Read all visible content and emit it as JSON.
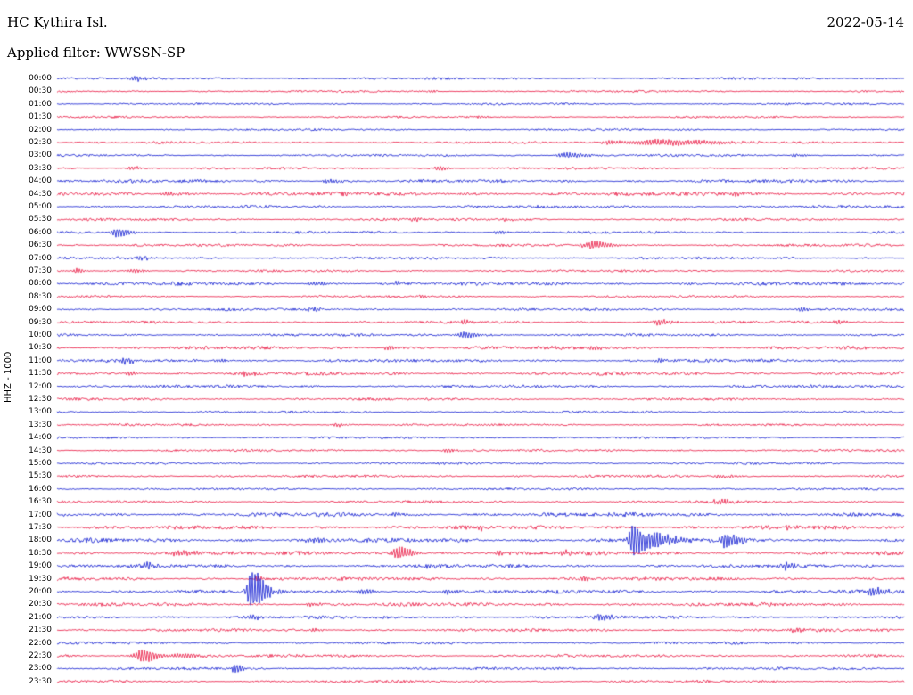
{
  "chart_data": {
    "type": "line",
    "subtype": "seismogram-helicorder",
    "title": "HC Kythira Isl.",
    "date": "2022-05-14",
    "filter": "Applied filter: WWSSN-SP",
    "ylabel": "HHZ - 1000",
    "trace_interval_minutes": 30,
    "legend": "off",
    "grid": "off",
    "colors": {
      "blue": "#0b16cf",
      "red": "#e8103c"
    },
    "rows": [
      {
        "time": "00:00",
        "color": "blue",
        "noise": 0.8,
        "events": [
          {
            "x": 0.09,
            "a": 3,
            "w": 6
          }
        ]
      },
      {
        "time": "00:30",
        "color": "red",
        "noise": 0.7,
        "events": [
          {
            "x": 0.44,
            "a": 2,
            "w": 4
          }
        ]
      },
      {
        "time": "01:00",
        "color": "blue",
        "noise": 0.7,
        "events": []
      },
      {
        "time": "01:30",
        "color": "red",
        "noise": 0.7,
        "events": [
          {
            "x": 0.5,
            "a": 1.5,
            "w": 4
          }
        ]
      },
      {
        "time": "02:00",
        "color": "blue",
        "noise": 0.7,
        "events": []
      },
      {
        "time": "02:30",
        "color": "red",
        "noise": 0.8,
        "events": [
          {
            "x": 0.71,
            "a": 3.5,
            "w": 40
          },
          {
            "x": 0.65,
            "a": 2,
            "w": 10
          }
        ]
      },
      {
        "time": "03:00",
        "color": "blue",
        "noise": 0.8,
        "events": [
          {
            "x": 0.6,
            "a": 3,
            "w": 12
          },
          {
            "x": 0.87,
            "a": 1.5,
            "w": 6
          }
        ]
      },
      {
        "time": "03:30",
        "color": "red",
        "noise": 0.8,
        "events": [
          {
            "x": 0.088,
            "a": 2.5,
            "w": 5
          },
          {
            "x": 0.45,
            "a": 2.5,
            "w": 6
          }
        ]
      },
      {
        "time": "04:00",
        "color": "blue",
        "noise": 1.1,
        "events": [
          {
            "x": 0.32,
            "a": 2,
            "w": 8
          }
        ]
      },
      {
        "time": "04:30",
        "color": "red",
        "noise": 1.4,
        "events": [
          {
            "x": 0.13,
            "a": 2,
            "w": 10
          },
          {
            "x": 0.8,
            "a": 2,
            "w": 8
          }
        ]
      },
      {
        "time": "05:00",
        "color": "blue",
        "noise": 1.0,
        "events": []
      },
      {
        "time": "05:30",
        "color": "red",
        "noise": 0.9,
        "events": [
          {
            "x": 0.42,
            "a": 2,
            "w": 6
          },
          {
            "x": 0.53,
            "a": 2,
            "w": 5
          }
        ]
      },
      {
        "time": "06:00",
        "color": "blue",
        "noise": 0.9,
        "events": [
          {
            "x": 0.07,
            "a": 5,
            "w": 9
          },
          {
            "x": 0.52,
            "a": 2,
            "w": 6
          }
        ]
      },
      {
        "time": "06:30",
        "color": "red",
        "noise": 0.9,
        "events": [
          {
            "x": 0.63,
            "a": 4,
            "w": 14
          }
        ]
      },
      {
        "time": "07:00",
        "color": "blue",
        "noise": 0.9,
        "events": [
          {
            "x": 0.1,
            "a": 2,
            "w": 8
          }
        ]
      },
      {
        "time": "07:30",
        "color": "red",
        "noise": 0.8,
        "events": [
          {
            "x": 0.023,
            "a": 3,
            "w": 4
          },
          {
            "x": 0.09,
            "a": 2,
            "w": 8
          }
        ]
      },
      {
        "time": "08:00",
        "color": "blue",
        "noise": 1.2,
        "events": [
          {
            "x": 0.3,
            "a": 2,
            "w": 10
          },
          {
            "x": 0.4,
            "a": 2,
            "w": 8
          }
        ]
      },
      {
        "time": "08:30",
        "color": "red",
        "noise": 0.8,
        "events": [
          {
            "x": 0.43,
            "a": 1.5,
            "w": 5
          }
        ]
      },
      {
        "time": "09:00",
        "color": "blue",
        "noise": 0.9,
        "events": [
          {
            "x": 0.3,
            "a": 2,
            "w": 6
          },
          {
            "x": 0.88,
            "a": 2,
            "w": 6
          }
        ]
      },
      {
        "time": "09:30",
        "color": "red",
        "noise": 0.9,
        "events": [
          {
            "x": 0.48,
            "a": 2,
            "w": 5
          },
          {
            "x": 0.71,
            "a": 3.5,
            "w": 8
          },
          {
            "x": 0.92,
            "a": 2.5,
            "w": 6
          }
        ]
      },
      {
        "time": "10:00",
        "color": "blue",
        "noise": 0.9,
        "events": [
          {
            "x": 0.48,
            "a": 3.5,
            "w": 10
          }
        ]
      },
      {
        "time": "10:30",
        "color": "red",
        "noise": 1.2,
        "events": [
          {
            "x": 0.39,
            "a": 2.5,
            "w": 6
          },
          {
            "x": 0.63,
            "a": 2,
            "w": 8
          }
        ]
      },
      {
        "time": "11:00",
        "color": "blue",
        "noise": 1.1,
        "events": [
          {
            "x": 0.08,
            "a": 3,
            "w": 6
          },
          {
            "x": 0.19,
            "a": 2,
            "w": 6
          },
          {
            "x": 0.71,
            "a": 2,
            "w": 6
          }
        ]
      },
      {
        "time": "11:30",
        "color": "red",
        "noise": 1.2,
        "events": [
          {
            "x": 0.085,
            "a": 2.5,
            "w": 5
          },
          {
            "x": 0.22,
            "a": 2,
            "w": 8
          }
        ]
      },
      {
        "time": "12:00",
        "color": "blue",
        "noise": 1.0,
        "events": []
      },
      {
        "time": "12:30",
        "color": "red",
        "noise": 0.9,
        "events": []
      },
      {
        "time": "13:00",
        "color": "blue",
        "noise": 0.8,
        "events": []
      },
      {
        "time": "13:30",
        "color": "red",
        "noise": 0.8,
        "events": [
          {
            "x": 0.33,
            "a": 2,
            "w": 6
          }
        ]
      },
      {
        "time": "14:00",
        "color": "blue",
        "noise": 0.8,
        "events": []
      },
      {
        "time": "14:30",
        "color": "red",
        "noise": 0.8,
        "events": [
          {
            "x": 0.46,
            "a": 2,
            "w": 6
          }
        ]
      },
      {
        "time": "15:00",
        "color": "blue",
        "noise": 0.8,
        "events": []
      },
      {
        "time": "15:30",
        "color": "red",
        "noise": 0.9,
        "events": [
          {
            "x": 0.78,
            "a": 2,
            "w": 8
          }
        ]
      },
      {
        "time": "16:00",
        "color": "blue",
        "noise": 0.8,
        "events": []
      },
      {
        "time": "16:30",
        "color": "red",
        "noise": 0.9,
        "events": [
          {
            "x": 0.78,
            "a": 2.5,
            "w": 10
          }
        ]
      },
      {
        "time": "17:00",
        "color": "blue",
        "noise": 1.4,
        "events": [
          {
            "x": 0.4,
            "a": 2,
            "w": 6
          }
        ]
      },
      {
        "time": "17:30",
        "color": "red",
        "noise": 1.4,
        "events": [
          {
            "x": 0.5,
            "a": 2,
            "w": 6
          },
          {
            "x": 0.86,
            "a": 2,
            "w": 6
          }
        ]
      },
      {
        "time": "18:00",
        "color": "blue",
        "noise": 1.5,
        "events": [
          {
            "x": 0.68,
            "a": 18,
            "w": 7
          },
          {
            "x": 0.705,
            "a": 7,
            "w": 14
          },
          {
            "x": 0.79,
            "a": 8,
            "w": 10
          },
          {
            "x": 0.3,
            "a": 2,
            "w": 8
          }
        ]
      },
      {
        "time": "18:30",
        "color": "red",
        "noise": 1.3,
        "events": [
          {
            "x": 0.143,
            "a": 3,
            "w": 14
          },
          {
            "x": 0.403,
            "a": 7,
            "w": 9
          },
          {
            "x": 0.52,
            "a": 2,
            "w": 6
          },
          {
            "x": 0.6,
            "a": 2.5,
            "w": 6
          }
        ]
      },
      {
        "time": "19:00",
        "color": "blue",
        "noise": 1.2,
        "events": [
          {
            "x": 0.106,
            "a": 4,
            "w": 6
          },
          {
            "x": 0.86,
            "a": 4,
            "w": 5
          },
          {
            "x": 0.44,
            "a": 2,
            "w": 8
          }
        ]
      },
      {
        "time": "19:30",
        "color": "red",
        "noise": 1.2,
        "events": [
          {
            "x": 0.235,
            "a": 2.5,
            "w": 4
          },
          {
            "x": 0.62,
            "a": 2,
            "w": 6
          }
        ]
      },
      {
        "time": "20:00",
        "color": "blue",
        "noise": 1.3,
        "events": [
          {
            "x": 0.23,
            "a": 22,
            "w": 8
          },
          {
            "x": 0.36,
            "a": 3,
            "w": 8
          },
          {
            "x": 0.46,
            "a": 3,
            "w": 6
          },
          {
            "x": 0.964,
            "a": 5,
            "w": 8
          }
        ]
      },
      {
        "time": "20:30",
        "color": "red",
        "noise": 1.2,
        "events": [
          {
            "x": 0.3,
            "a": 2,
            "w": 8
          }
        ]
      },
      {
        "time": "21:00",
        "color": "blue",
        "noise": 1.1,
        "events": [
          {
            "x": 0.23,
            "a": 3,
            "w": 5
          },
          {
            "x": 0.64,
            "a": 4,
            "w": 6
          }
        ]
      },
      {
        "time": "21:30",
        "color": "red",
        "noise": 1.0,
        "events": [
          {
            "x": 0.3,
            "a": 2,
            "w": 6
          },
          {
            "x": 0.87,
            "a": 2.5,
            "w": 8
          }
        ]
      },
      {
        "time": "22:00",
        "color": "blue",
        "noise": 0.9,
        "events": []
      },
      {
        "time": "22:30",
        "color": "red",
        "noise": 1.0,
        "events": [
          {
            "x": 0.1,
            "a": 7,
            "w": 10
          },
          {
            "x": 0.145,
            "a": 2.5,
            "w": 14
          }
        ]
      },
      {
        "time": "23:00",
        "color": "blue",
        "noise": 0.9,
        "events": [
          {
            "x": 0.21,
            "a": 5,
            "w": 5
          }
        ]
      },
      {
        "time": "23:30",
        "color": "red",
        "noise": 0.9,
        "events": []
      }
    ]
  }
}
